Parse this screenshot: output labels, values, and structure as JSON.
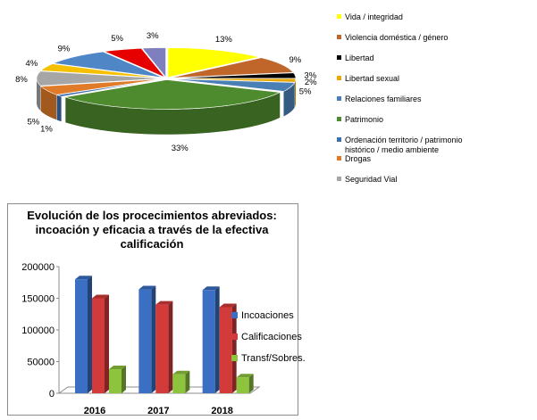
{
  "chart_data": [
    {
      "type": "pie",
      "style": "3d-exploded",
      "legend_position": "right",
      "slices": [
        {
          "label": "Vida / integridad",
          "value": 13,
          "value_label": "13%",
          "color": "#ffff00"
        },
        {
          "label": "Violencia doméstica / género",
          "value": 9,
          "value_label": "9%",
          "color": "#c0662a"
        },
        {
          "label": "Libertad",
          "value": 3,
          "value_label": "3%",
          "color": "#000000"
        },
        {
          "label": "Libertad sexual",
          "value": 2,
          "value_label": "2%",
          "color": "#e8a800"
        },
        {
          "label": "Relaciones familiares",
          "value": 5,
          "value_label": "5%",
          "color": "#4a7fb5"
        },
        {
          "label": "Patrimonio",
          "value": 33,
          "value_label": "33%",
          "color": "#4e8a2e"
        },
        {
          "label": "Ordenación territorio / patrimonio histórico / medio ambiente",
          "legend_lines": [
            "Ordenación territorio / patrimonio",
            "histórico / medio ambiente"
          ],
          "value": 1,
          "value_label": "1%",
          "color": "#3c6fb0"
        },
        {
          "label": "Drogas",
          "value": 5,
          "value_label": "5%",
          "color": "#e07b2a"
        },
        {
          "label": "Seguridad Vial",
          "value": 8,
          "value_label": "8%",
          "color": "#a6a6a6"
        },
        {
          "label": "",
          "value": 4,
          "value_label": "4%",
          "color": "#f5c000"
        },
        {
          "label": "",
          "value": 9,
          "value_label": "9%",
          "color": "#4f86c6"
        },
        {
          "label": "",
          "value": 5,
          "value_label": "5%",
          "color": "#e60000"
        },
        {
          "label": "",
          "value": 3,
          "value_label": "3%",
          "color": "#7f7fbf"
        }
      ]
    },
    {
      "type": "bar",
      "style": "3d-clustered-column",
      "title": "Evolución de los procecimientos abreviados: incoación y eficacia a través de la efectiva calificación",
      "title_lines": [
        "Evolución de los procecimientos abreviados:",
        "incoación y eficacia a través de la efectiva",
        "calificación"
      ],
      "categories": [
        "2016",
        "2017",
        "2018"
      ],
      "series": [
        {
          "name": "Incoaciones",
          "values": [
            180000,
            164000,
            163000
          ],
          "color": "#3b6fc4"
        },
        {
          "name": "Calificaciones",
          "values": [
            150000,
            140000,
            136000
          ],
          "color": "#d33a3a"
        },
        {
          "name": "Transf/Sobres.",
          "values": [
            38000,
            30000,
            25000
          ],
          "color": "#8ec43d"
        }
      ],
      "ylim": [
        0,
        200000
      ],
      "yticks": [
        "200000",
        "150000",
        "100000",
        "50000",
        "0"
      ],
      "legend_position": "right",
      "grid": false
    }
  ]
}
